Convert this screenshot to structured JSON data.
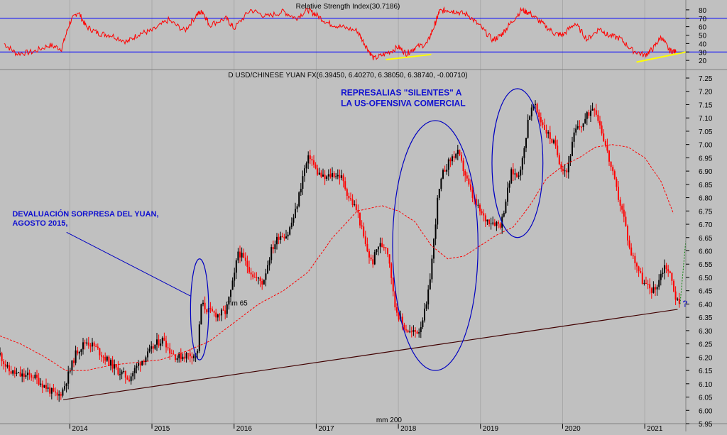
{
  "chart_data": [
    {
      "type": "line",
      "panel": "rsi",
      "title": "Relative Strength Index(30.7186)",
      "ylim": [
        10,
        90
      ],
      "y_ticks": [
        80,
        70,
        60,
        50,
        40,
        30,
        20
      ],
      "levels": [
        70,
        30
      ],
      "series": [
        {
          "name": "",
          "x": [
            2013.2,
            2013.35,
            2013.55,
            2013.75,
            2013.9,
            2014.0,
            2014.1,
            2014.2,
            2014.35,
            2014.5,
            2014.7,
            2014.85,
            2015.0,
            2015.2,
            2015.4,
            2015.55,
            2015.62,
            2015.7,
            2015.9,
            2016.0,
            2016.2,
            2016.4,
            2016.6,
            2016.75,
            2016.9,
            2017.0,
            2017.15,
            2017.3,
            2017.5,
            2017.6,
            2017.7,
            2017.85,
            2018.0,
            2018.1,
            2018.2,
            2018.35,
            2018.45,
            2018.5,
            2018.6,
            2018.7,
            2018.85,
            2019.0,
            2019.15,
            2019.25,
            2019.35,
            2019.5,
            2019.6,
            2019.75,
            2019.9,
            2020.0,
            2020.15,
            2020.3,
            2020.45,
            2020.55,
            2020.7,
            2020.85,
            2021.0,
            2021.1,
            2021.2,
            2021.3,
            2021.38
          ],
          "values": [
            40,
            28,
            30,
            38,
            34,
            65,
            78,
            60,
            52,
            50,
            42,
            52,
            55,
            68,
            55,
            75,
            78,
            62,
            70,
            58,
            80,
            72,
            78,
            70,
            80,
            74,
            64,
            60,
            55,
            38,
            22,
            28,
            36,
            28,
            35,
            40,
            64,
            78,
            80,
            78,
            74,
            60,
            44,
            50,
            62,
            80,
            76,
            64,
            52,
            50,
            64,
            45,
            58,
            50,
            46,
            32,
            26,
            34,
            48,
            32,
            30
          ]
        }
      ],
      "annotations": [
        {
          "kind": "trendline",
          "x": [
            2017.85,
            2018.4
          ],
          "y": [
            21,
            27
          ],
          "color": "#ffff00"
        },
        {
          "kind": "trendline",
          "x": [
            2020.9,
            2021.5
          ],
          "y": [
            18,
            30
          ],
          "color": "#ffff00"
        }
      ]
    },
    {
      "type": "candlestick",
      "panel": "price",
      "title": "D USD/CHINESE YUAN FX(6.39450, 6.40270, 6.38050, 6.38740, -0.00710)",
      "ylim": [
        5.95,
        7.25
      ],
      "y_ticks": [
        7.25,
        7.2,
        7.15,
        7.1,
        7.05,
        7.0,
        6.95,
        6.9,
        6.85,
        6.8,
        6.75,
        6.7,
        6.65,
        6.6,
        6.55,
        6.5,
        6.45,
        6.4,
        6.35,
        6.3,
        6.25,
        6.2,
        6.15,
        6.1,
        6.05,
        6.0,
        5.95
      ],
      "xlim": [
        2013.15,
        2021.5
      ],
      "x_ticks": [
        "2014",
        "2015",
        "2016",
        "2017",
        "2018",
        "2019",
        "2020",
        "2021"
      ],
      "price_path": [
        [
          2013.15,
          6.21
        ],
        [
          2013.25,
          6.15
        ],
        [
          2013.4,
          6.13
        ],
        [
          2013.55,
          6.13
        ],
        [
          2013.7,
          6.09
        ],
        [
          2013.85,
          6.05
        ],
        [
          2013.92,
          6.08
        ],
        [
          2014.0,
          6.15
        ],
        [
          2014.08,
          6.22
        ],
        [
          2014.2,
          6.26
        ],
        [
          2014.3,
          6.24
        ],
        [
          2014.42,
          6.2
        ],
        [
          2014.58,
          6.15
        ],
        [
          2014.72,
          6.12
        ],
        [
          2014.85,
          6.18
        ],
        [
          2014.95,
          6.21
        ],
        [
          2015.05,
          6.25
        ],
        [
          2015.15,
          6.27
        ],
        [
          2015.2,
          6.23
        ],
        [
          2015.3,
          6.2
        ],
        [
          2015.45,
          6.21
        ],
        [
          2015.55,
          6.21
        ],
        [
          2015.6,
          6.4
        ],
        [
          2015.7,
          6.37
        ],
        [
          2015.8,
          6.36
        ],
        [
          2015.9,
          6.37
        ],
        [
          2016.0,
          6.5
        ],
        [
          2016.05,
          6.6
        ],
        [
          2016.15,
          6.55
        ],
        [
          2016.25,
          6.5
        ],
        [
          2016.35,
          6.48
        ],
        [
          2016.45,
          6.6
        ],
        [
          2016.55,
          6.66
        ],
        [
          2016.65,
          6.66
        ],
        [
          2016.75,
          6.75
        ],
        [
          2016.85,
          6.9
        ],
        [
          2016.92,
          6.96
        ],
        [
          2017.0,
          6.9
        ],
        [
          2017.1,
          6.87
        ],
        [
          2017.2,
          6.89
        ],
        [
          2017.3,
          6.88
        ],
        [
          2017.4,
          6.8
        ],
        [
          2017.5,
          6.75
        ],
        [
          2017.6,
          6.62
        ],
        [
          2017.68,
          6.55
        ],
        [
          2017.75,
          6.62
        ],
        [
          2017.85,
          6.62
        ],
        [
          2017.9,
          6.55
        ],
        [
          2017.95,
          6.4
        ],
        [
          2018.05,
          6.32
        ],
        [
          2018.15,
          6.29
        ],
        [
          2018.25,
          6.3
        ],
        [
          2018.35,
          6.4
        ],
        [
          2018.42,
          6.6
        ],
        [
          2018.48,
          6.8
        ],
        [
          2018.55,
          6.9
        ],
        [
          2018.65,
          6.95
        ],
        [
          2018.72,
          6.97
        ],
        [
          2018.8,
          6.9
        ],
        [
          2018.88,
          6.82
        ],
        [
          2018.95,
          6.77
        ],
        [
          2019.05,
          6.72
        ],
        [
          2019.15,
          6.71
        ],
        [
          2019.25,
          6.7
        ],
        [
          2019.3,
          6.78
        ],
        [
          2019.38,
          6.9
        ],
        [
          2019.45,
          6.88
        ],
        [
          2019.52,
          6.95
        ],
        [
          2019.58,
          7.1
        ],
        [
          2019.65,
          7.15
        ],
        [
          2019.72,
          7.1
        ],
        [
          2019.8,
          7.05
        ],
        [
          2019.9,
          7.0
        ],
        [
          2019.98,
          6.92
        ],
        [
          2020.05,
          6.9
        ],
        [
          2020.15,
          7.05
        ],
        [
          2020.25,
          7.08
        ],
        [
          2020.32,
          7.12
        ],
        [
          2020.38,
          7.15
        ],
        [
          2020.45,
          7.08
        ],
        [
          2020.52,
          7.0
        ],
        [
          2020.6,
          6.9
        ],
        [
          2020.68,
          6.8
        ],
        [
          2020.75,
          6.72
        ],
        [
          2020.82,
          6.6
        ],
        [
          2020.9,
          6.55
        ],
        [
          2020.98,
          6.48
        ],
        [
          2021.05,
          6.46
        ],
        [
          2021.12,
          6.45
        ],
        [
          2021.18,
          6.5
        ],
        [
          2021.25,
          6.55
        ],
        [
          2021.32,
          6.5
        ],
        [
          2021.38,
          6.42
        ],
        [
          2021.43,
          6.39
        ]
      ],
      "moving_averages": [
        {
          "label": "mm 65",
          "x": [
            2013.15,
            2013.4,
            2013.7,
            2013.95,
            2014.2,
            2014.5,
            2014.8,
            2015.1,
            2015.4,
            2015.7,
            2016.0,
            2016.3,
            2016.6,
            2016.9,
            2017.2,
            2017.5,
            2017.8,
            2018.0,
            2018.2,
            2018.4,
            2018.6,
            2018.8,
            2019.0,
            2019.2,
            2019.4,
            2019.6,
            2019.8,
            2020.0,
            2020.2,
            2020.4,
            2020.6,
            2020.8,
            2021.0,
            2021.2,
            2021.35
          ],
          "y": [
            6.28,
            6.25,
            6.2,
            6.15,
            6.15,
            6.17,
            6.18,
            6.19,
            6.22,
            6.26,
            6.33,
            6.4,
            6.45,
            6.52,
            6.65,
            6.75,
            6.77,
            6.75,
            6.71,
            6.62,
            6.57,
            6.58,
            6.62,
            6.66,
            6.69,
            6.77,
            6.87,
            6.92,
            6.95,
            6.99,
            7.0,
            6.99,
            6.95,
            6.86,
            6.74
          ]
        }
      ],
      "trendline": {
        "x": [
          2013.92,
          2021.4
        ],
        "y": [
          6.04,
          6.38
        ]
      },
      "projection": {
        "x": [
          2021.43,
          2021.5
        ],
        "y": [
          6.4,
          6.64
        ]
      },
      "annotations": [
        {
          "text": "REPRESALIAS \"SILENTES\" A",
          "x": 2017.3,
          "y": 7.185
        },
        {
          "text": "LA US-OFENSIVA COMERCIAL",
          "x": 2017.3,
          "y": 7.145
        },
        {
          "text": "DEVALUACIÓN SORPRESA DEL YUAN,",
          "x": 2013.3,
          "y": 6.73
        },
        {
          "text": "AGOSTO 2015,",
          "x": 2013.3,
          "y": 6.695
        },
        {
          "text": "mm 65",
          "x": 2015.9,
          "y": 6.395
        },
        {
          "text": "mm 200",
          "x": 2017.73,
          "y": 5.955
        },
        {
          "text": "?",
          "x": 2021.46,
          "y": 6.39
        }
      ],
      "ellipses": [
        {
          "cx": 2015.58,
          "cy": 6.38,
          "rx": 0.11,
          "ry": 0.19
        },
        {
          "cx": 2018.45,
          "cy": 6.62,
          "rx": 0.52,
          "ry": 0.47
        },
        {
          "cx": 2019.45,
          "cy": 6.93,
          "rx": 0.31,
          "ry": 0.28
        }
      ]
    }
  ],
  "colors": {
    "background": "#c0c0c0",
    "rsi_line": "#ff0000",
    "level_line": "#0000ff",
    "candle_up": "#000000",
    "candle_down": "#ff0000",
    "ma_line": "#ff0000",
    "trendline": "#400000",
    "ellipse": "#0000c0",
    "annotation": "#1010d0",
    "highlight": "#ffff00",
    "projection": "#008000"
  }
}
